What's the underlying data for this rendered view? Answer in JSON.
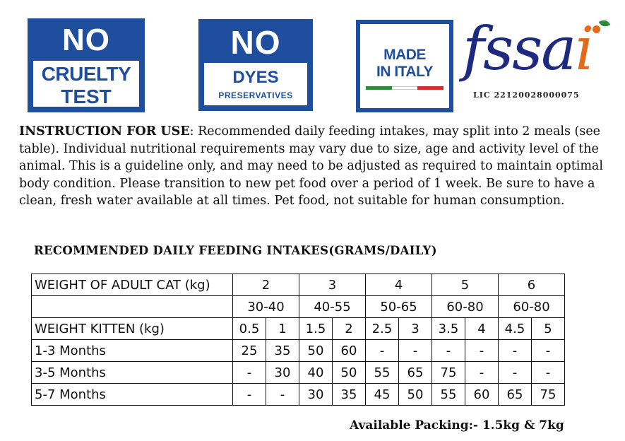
{
  "badges": {
    "cruelty": {
      "top": "NO",
      "line1": "CRUELTY",
      "line2": "TEST"
    },
    "dyes": {
      "top": "NO",
      "line1": "DYES",
      "line2": "PRESERVATIVES"
    },
    "italy": {
      "line1": "MADE",
      "line2": "IN ITALY",
      "flag_colors": [
        "#2e8b3a",
        "#ffffff",
        "#d62b2b"
      ]
    }
  },
  "fssai": {
    "word_prefix": "fssa",
    "word_suffix": "i",
    "license": "LIC 22120028000075",
    "colors": {
      "primary": "#1e2a80",
      "accent": "#e26a1a",
      "leaf": "#2e8b3a"
    }
  },
  "instructions": {
    "heading": "INSTRUCTION FOR USE",
    "body": ": Recommended daily feeding intakes, may split into 2 meals (see table). Individual nutritional requirements may vary due to size, age and activity level of the animal. This is a guideline only, and may need to be adjusted as required to maintain optimal body condition. Please transition to new pet food over a period of 1 week. Be sure to have a clean, fresh water available at all times. Pet food, not suitable for human consumption."
  },
  "table": {
    "title": "RECOMMENDED DAILY FEEDING INTAKES(GRAMS/DAILY)",
    "adult_row": {
      "label": "WEIGHT OF ADULT CAT (kg)",
      "values": [
        "2",
        "3",
        "4",
        "5",
        "6"
      ]
    },
    "adult_intake": {
      "label": "",
      "values": [
        "30-40",
        "40-55",
        "50-65",
        "60-80",
        "60-80"
      ]
    },
    "kitten_row": {
      "label": "WEIGHT KITTEN (kg)",
      "values": [
        "0.5",
        "1",
        "1.5",
        "2",
        "2.5",
        "3",
        "3.5",
        "4",
        "4.5",
        "5"
      ]
    },
    "rows": [
      {
        "label": "1-3 Months",
        "values": [
          "25",
          "35",
          "50",
          "60",
          "-",
          "-",
          "-",
          "-",
          "-",
          "-"
        ]
      },
      {
        "label": "3-5 Months",
        "values": [
          "-",
          "30",
          "40",
          "50",
          "55",
          "65",
          "75",
          "-",
          "-",
          "-"
        ]
      },
      {
        "label": "5-7 Months",
        "values": [
          "-",
          "-",
          "30",
          "35",
          "45",
          "50",
          "55",
          "60",
          "65",
          "75"
        ]
      }
    ]
  },
  "packing": "Available Packing:- 1.5kg & 7kg"
}
